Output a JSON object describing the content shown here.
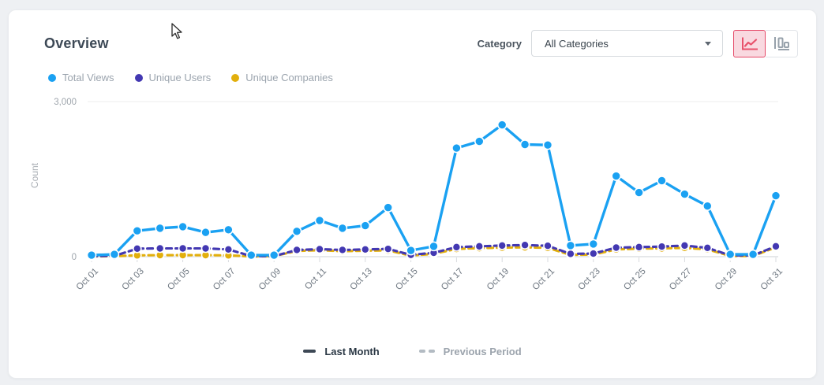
{
  "header": {
    "title": "Overview",
    "category_label": "Category",
    "category_value": "All Categories"
  },
  "toolbar": {
    "chart_type_options": [
      "line",
      "bar"
    ],
    "selected_chart_type": "line"
  },
  "legend": {
    "items": [
      {
        "label": "Total Views",
        "color": "#1aa1f2"
      },
      {
        "label": "Unique Users",
        "color": "#4338b2"
      },
      {
        "label": "Unique Companies",
        "color": "#e2af0c"
      }
    ]
  },
  "chart_data": {
    "type": "line",
    "title": "Overview",
    "xlabel": "",
    "ylabel": "Count",
    "ylim": [
      0,
      3000
    ],
    "yticks": [
      {
        "value": 0,
        "label": "0"
      },
      {
        "value": 3000,
        "label": "3,000"
      }
    ],
    "x_tick_step": 2,
    "grid": "top-line-and-baseline-only",
    "legend_position": "top-left",
    "categories": [
      "Oct 01",
      "Oct 02",
      "Oct 03",
      "Oct 04",
      "Oct 05",
      "Oct 06",
      "Oct 07",
      "Oct 08",
      "Oct 09",
      "Oct 10",
      "Oct 11",
      "Oct 12",
      "Oct 13",
      "Oct 14",
      "Oct 15",
      "Oct 16",
      "Oct 17",
      "Oct 18",
      "Oct 19",
      "Oct 20",
      "Oct 21",
      "Oct 22",
      "Oct 23",
      "Oct 24",
      "Oct 25",
      "Oct 26",
      "Oct 27",
      "Oct 28",
      "Oct 29",
      "Oct 30",
      "Oct 31"
    ],
    "series": [
      {
        "name": "Total Views",
        "color": "#1aa1f2",
        "style": "solid",
        "values": [
          30,
          45,
          500,
          550,
          580,
          470,
          520,
          30,
          30,
          490,
          700,
          550,
          600,
          950,
          120,
          200,
          2100,
          2230,
          2550,
          2170,
          2160,
          215,
          245,
          1560,
          1240,
          1470,
          1210,
          980,
          45,
          45,
          1180
        ]
      },
      {
        "name": "Unique Users",
        "color": "#4338b2",
        "style": "dashed",
        "values": [
          10,
          15,
          155,
          160,
          160,
          160,
          140,
          10,
          10,
          130,
          145,
          130,
          140,
          150,
          35,
          75,
          185,
          200,
          215,
          225,
          210,
          55,
          60,
          175,
          185,
          195,
          215,
          170,
          25,
          25,
          200
        ]
      },
      {
        "name": "Unique Companies",
        "color": "#e2af0c",
        "style": "dashed",
        "values": [
          5,
          10,
          25,
          30,
          30,
          30,
          25,
          5,
          10,
          110,
          125,
          105,
          115,
          120,
          20,
          55,
          150,
          165,
          175,
          180,
          170,
          35,
          40,
          140,
          155,
          160,
          170,
          140,
          15,
          15,
          180
        ]
      }
    ]
  },
  "period_legend": {
    "last_month": "Last Month",
    "previous_period": "Previous Period"
  },
  "colors": {
    "accent_selected": "#e54867",
    "accent_selected_bg": "#f9d9e0",
    "card_bg": "#ffffff",
    "page_bg": "#eef0f3",
    "axis_text": "#6e7781",
    "muted_text": "#9ba4ae"
  }
}
